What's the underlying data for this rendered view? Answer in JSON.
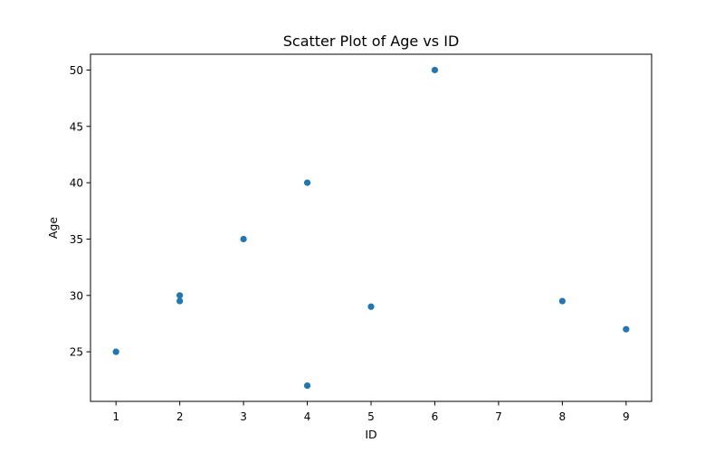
{
  "chart_data": {
    "type": "scatter",
    "title": "Scatter Plot of Age vs ID",
    "xlabel": "ID",
    "ylabel": "Age",
    "xlim": [
      0.6,
      9.4
    ],
    "ylim": [
      20.6,
      51.4
    ],
    "xticks": [
      1,
      2,
      3,
      4,
      5,
      6,
      7,
      8,
      9
    ],
    "yticks": [
      25,
      30,
      35,
      40,
      45,
      50
    ],
    "grid": false,
    "legend": "none",
    "color": "#1f77b4",
    "points": [
      {
        "x": 1,
        "y": 25
      },
      {
        "x": 2,
        "y": 30
      },
      {
        "x": 2,
        "y": 29.5
      },
      {
        "x": 3,
        "y": 35
      },
      {
        "x": 4,
        "y": 40
      },
      {
        "x": 4,
        "y": 22
      },
      {
        "x": 5,
        "y": 29
      },
      {
        "x": 6,
        "y": 50
      },
      {
        "x": 8,
        "y": 29.5
      },
      {
        "x": 9,
        "y": 27
      }
    ]
  }
}
